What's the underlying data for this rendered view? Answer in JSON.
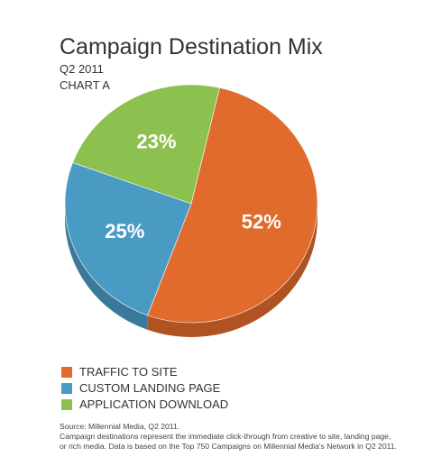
{
  "chart_data": {
    "type": "pie",
    "title": "Campaign Destination Mix",
    "subtitle": "Q2 2011",
    "subtitle2": "CHART A",
    "slices": [
      {
        "label": "TRAFFIC TO SITE",
        "value": 52,
        "value_label": "52%",
        "color": "#e06b2c"
      },
      {
        "label": "CUSTOM LANDING PAGE",
        "value": 25,
        "value_label": "25%",
        "color": "#4a9bc4"
      },
      {
        "label": "APPLICATION DOWNLOAD",
        "value": 23,
        "value_label": "23%",
        "color": "#8cc04f"
      }
    ],
    "legend_position": "bottom-left"
  },
  "footnote": {
    "line1": "Source: Millennial Media, Q2 2011.",
    "line2": "Campaign destinations represent the immediate click-through from creative to site, landing page,",
    "line3": "or rich media. Data is based on the Top 750 Campaigns on Millennial Media's Network in Q2 2011."
  }
}
